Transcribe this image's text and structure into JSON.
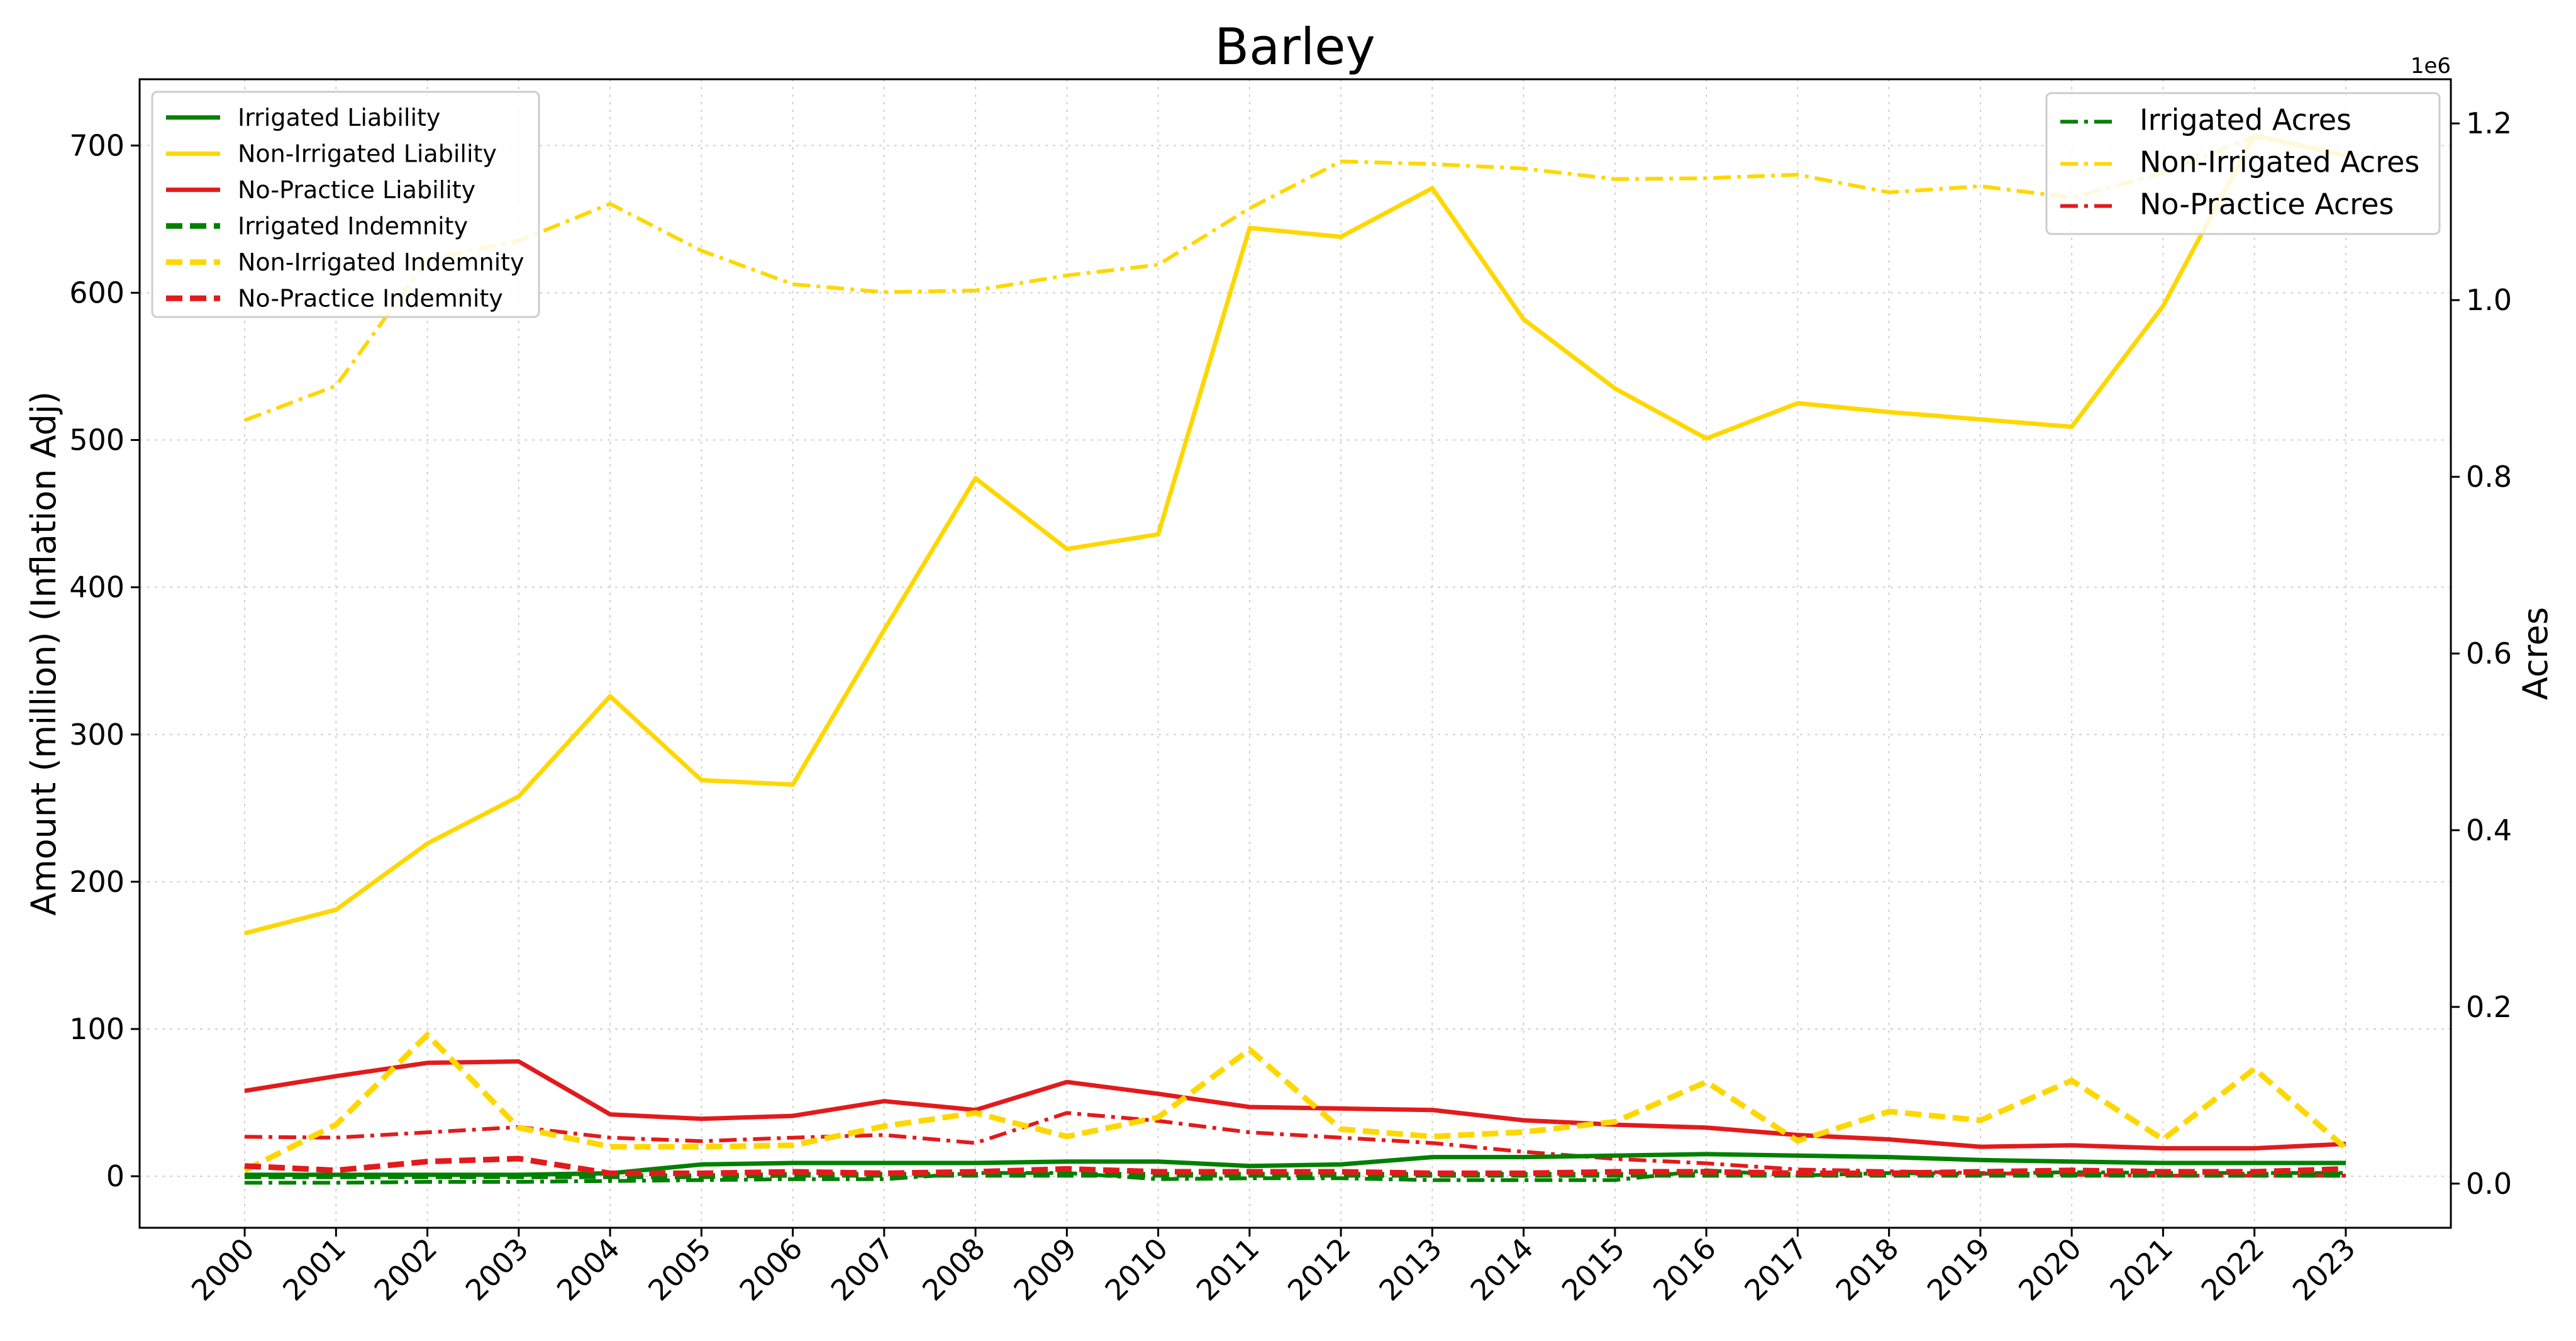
{
  "chart_data": {
    "type": "line",
    "title": "Barley",
    "ylabel": "Amount (million) (Inflation Adj)",
    "y2label": "Acres",
    "y2_offset_text": "1e6",
    "ylim": [
      -35,
      745
    ],
    "y2lim": [
      -0.05,
      1.25
    ],
    "yticks": [
      0,
      100,
      200,
      300,
      400,
      500,
      600,
      700
    ],
    "y2ticks": [
      0.0,
      0.2,
      0.4,
      0.6,
      0.8,
      1.0,
      1.2
    ],
    "x": [
      2000,
      2001,
      2002,
      2003,
      2004,
      2005,
      2006,
      2007,
      2008,
      2009,
      2010,
      2011,
      2012,
      2013,
      2014,
      2015,
      2016,
      2017,
      2018,
      2019,
      2020,
      2021,
      2022,
      2023
    ],
    "grid": true,
    "legend_left_position": "top-left",
    "legend_right_position": "top-right",
    "series": [
      {
        "name": "Irrigated Liability",
        "axis": "left",
        "style": "solid",
        "color": "#008000",
        "values": [
          1,
          1,
          1,
          1,
          2,
          8,
          9,
          9,
          9,
          10,
          10,
          7,
          8,
          13,
          13,
          14,
          15,
          14,
          13,
          11,
          10,
          9,
          9,
          9
        ]
      },
      {
        "name": "Non-Irrigated Liability",
        "axis": "left",
        "style": "solid",
        "color": "#FFD700",
        "values": [
          165,
          181,
          226,
          258,
          326,
          269,
          266,
          371,
          474,
          426,
          436,
          644,
          638,
          671,
          582,
          535,
          501,
          525,
          519,
          514,
          509,
          591,
          707,
          693
        ]
      },
      {
        "name": "No-Practice Liability",
        "axis": "left",
        "style": "solid",
        "color": "#E31A1C",
        "values": [
          58,
          68,
          77,
          78,
          42,
          39,
          41,
          51,
          45,
          64,
          56,
          47,
          46,
          45,
          38,
          35,
          33,
          28,
          25,
          20,
          21,
          19,
          19,
          22
        ]
      },
      {
        "name": "Irrigated Indemnity",
        "axis": "left",
        "style": "dashed",
        "color": "#008000",
        "values": [
          0,
          0,
          0,
          0,
          0,
          0,
          1,
          1,
          1,
          1,
          1,
          1,
          1,
          1,
          1,
          1,
          1,
          1,
          1,
          1,
          1,
          1,
          1,
          1
        ]
      },
      {
        "name": "Non-Irrigated Indemnity",
        "axis": "left",
        "style": "dashed",
        "color": "#FFD700",
        "values": [
          4,
          35,
          96,
          33,
          20,
          20,
          21,
          34,
          43,
          27,
          40,
          86,
          32,
          27,
          30,
          37,
          64,
          24,
          44,
          38,
          65,
          25,
          73,
          19
        ]
      },
      {
        "name": "No-Practice Indemnity",
        "axis": "left",
        "style": "dashed",
        "color": "#E31A1C",
        "values": [
          7,
          4,
          10,
          12,
          2,
          2,
          3,
          2,
          3,
          5,
          3,
          3,
          3,
          2,
          2,
          3,
          3,
          2,
          2,
          3,
          4,
          3,
          3,
          5
        ]
      },
      {
        "name": "Irrigated Acres",
        "axis": "right",
        "style": "dashdot",
        "color": "#008000",
        "values": [
          0.001,
          0.001,
          0.002,
          0.002,
          0.003,
          0.004,
          0.005,
          0.005,
          0.012,
          0.012,
          0.005,
          0.006,
          0.006,
          0.004,
          0.004,
          0.004,
          0.015,
          0.009,
          0.012,
          0.011,
          0.013,
          0.012,
          0.012,
          0.012
        ]
      },
      {
        "name": "Non-Irrigated Acres",
        "axis": "right",
        "style": "dashdot",
        "color": "#FFD700",
        "values": [
          0.864,
          0.903,
          1.046,
          1.067,
          1.109,
          1.056,
          1.018,
          1.009,
          1.011,
          1.028,
          1.04,
          1.104,
          1.157,
          1.154,
          1.149,
          1.137,
          1.138,
          1.142,
          1.122,
          1.129,
          1.116,
          1.144,
          1.185,
          1.165
        ]
      },
      {
        "name": "No-Practice Acres",
        "axis": "right",
        "style": "dashdot",
        "color": "#E31A1C",
        "values": [
          0.053,
          0.052,
          0.058,
          0.064,
          0.052,
          0.048,
          0.052,
          0.055,
          0.046,
          0.08,
          0.071,
          0.058,
          0.052,
          0.046,
          0.036,
          0.028,
          0.023,
          0.016,
          0.014,
          0.012,
          0.01,
          0.009,
          0.009,
          0.009
        ]
      }
    ]
  }
}
